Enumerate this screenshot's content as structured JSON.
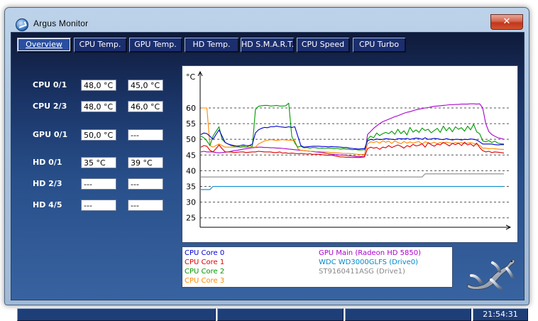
{
  "window": {
    "title": "Argus Monitor",
    "close_glyph": "✕",
    "icon_name": "argus-monitor-app-icon"
  },
  "tabs": [
    "Overview",
    "CPU Temp.",
    "GPU Temp.",
    "HD Temp.",
    "HD S.M.A.R.T.",
    "CPU Speed",
    "CPU Turbo"
  ],
  "active_tab": "Overview",
  "readings": [
    {
      "label": "CPU 0/1",
      "values": [
        "48,0 °C",
        "45,0 °C"
      ]
    },
    {
      "label": "CPU 2/3",
      "values": [
        "48,0 °C",
        "46,0 °C"
      ]
    },
    {
      "label": "GPU 0/1",
      "values": [
        "50,0 °C",
        "---"
      ]
    },
    {
      "label": "HD 0/1",
      "values": [
        "35 °C",
        "39 °C"
      ]
    },
    {
      "label": "HD 2/3",
      "values": [
        "---",
        "---"
      ]
    },
    {
      "label": "HD 4/5",
      "values": [
        "---",
        "---"
      ]
    }
  ],
  "legend": [
    {
      "label": "CPU Core 0",
      "color": "#0000cc"
    },
    {
      "label": "CPU Core 1",
      "color": "#dd0000"
    },
    {
      "label": "CPU Core 2",
      "color": "#009900"
    },
    {
      "label": "CPU Core 3",
      "color": "#ff8800"
    },
    {
      "label": "GPU Main (Radeon HD 5850)",
      "color": "#aa00cc"
    },
    {
      "label": "WDC WD3000GLFS (Drive0)",
      "color": "#0088cc"
    },
    {
      "label": "ST9160411ASG (Drive1)",
      "color": "#888888"
    }
  ],
  "status": {
    "time": "21:54:31"
  },
  "chart_data": {
    "type": "line",
    "ylabel": "°C",
    "yticks": [
      60,
      55,
      50,
      45,
      40,
      35,
      30,
      25
    ],
    "ylim": [
      22,
      67
    ],
    "x_count": 101,
    "grid": true,
    "series": [
      {
        "name": "CPU Core 0",
        "color": "#0000cc",
        "values": [
          51.5,
          52,
          51.8,
          51,
          50,
          51.5,
          53,
          51,
          49,
          48.5,
          48.2,
          48,
          47.8,
          48,
          48.2,
          48,
          48,
          48.5,
          52,
          53,
          53.5,
          53.8,
          53.7,
          54,
          54,
          54.2,
          54,
          53.9,
          53.8,
          54,
          53.8,
          54,
          51,
          48,
          47.5,
          47.6,
          47.7,
          47.8,
          47.8,
          47.8,
          47.7,
          47.7,
          47.6,
          47.7,
          47.6,
          47.6,
          47.5,
          47.4,
          47.4,
          47.2,
          47.1,
          47,
          46.9,
          47,
          47,
          49.5,
          50,
          49.8,
          50.1,
          49.9,
          50,
          50.2,
          50.1,
          50,
          49.9,
          50.2,
          50.2,
          50.1,
          50.3,
          50,
          50.2,
          50.4,
          50.3,
          50,
          50.5,
          50,
          50.1,
          50.3,
          50.2,
          50,
          49.9,
          50.2,
          50,
          49.8,
          50,
          50,
          49.8,
          50,
          49.9,
          50.1,
          50,
          49.8,
          49.2,
          48.5,
          48.5,
          48.5,
          48.5,
          48.3,
          48.2,
          48.3,
          48.3
        ]
      },
      {
        "name": "CPU Core 1",
        "color": "#dd0000",
        "values": [
          47.5,
          48,
          47.8,
          46.5,
          46,
          47,
          48.2,
          47,
          46,
          46,
          46,
          45.8,
          45.9,
          46,
          46,
          45.8,
          45.9,
          46,
          46,
          46.2,
          46.1,
          46,
          46,
          46,
          45.8,
          45.8,
          46,
          45.6,
          45.7,
          45.5,
          45.6,
          45.5,
          45.4,
          45.5,
          45.4,
          45.3,
          45.4,
          45.2,
          45.3,
          45.2,
          45.1,
          45,
          44.9,
          45,
          44.8,
          44.6,
          44.4,
          44.4,
          44.3,
          44.3,
          44.2,
          44.3,
          44.2,
          44.3,
          44.4,
          47,
          47.5,
          47.2,
          47.4,
          46.8,
          47.5,
          47.3,
          48,
          47.4,
          47.8,
          48.2,
          47.8,
          47.2,
          48,
          47.6,
          48.4,
          47.9,
          48.1,
          48.6,
          47.5,
          48.9,
          48.3,
          47.8,
          48.5,
          48.2,
          49,
          48.5,
          47.9,
          48.7,
          48.3,
          48.8,
          48,
          49.1,
          48.2,
          48.6,
          47.8,
          48.8,
          47.4,
          46.4,
          46,
          46.2,
          45.8,
          46,
          45.9,
          45.8,
          45.6
        ]
      },
      {
        "name": "CPU Core 2",
        "color": "#009900",
        "values": [
          51,
          50.5,
          49.5,
          48,
          51,
          52.5,
          54,
          50,
          49,
          48.5,
          48,
          47.8,
          47.9,
          47.5,
          47.8,
          47.5,
          48,
          47.8,
          59.5,
          60.5,
          60.7,
          60.8,
          60.8,
          60.6,
          60.7,
          60.8,
          60.6,
          60.6,
          60.7,
          61.5,
          51,
          48.8,
          47.5,
          47.8,
          47.3,
          47.4,
          47.2,
          47.4,
          47.3,
          47.1,
          47.2,
          47.1,
          47.2,
          47.2,
          47,
          47.1,
          46.9,
          47,
          46.9,
          46.8,
          46.7,
          46.8,
          46.6,
          46.6,
          46.7,
          50,
          51,
          50.5,
          52,
          51.2,
          51.8,
          52.2,
          51.8,
          52.6,
          51.6,
          53.2,
          51.8,
          52.7,
          51.4,
          53.8,
          52.3,
          53,
          52.2,
          53.6,
          52.8,
          53.2,
          52.1,
          52.8,
          53.5,
          52.2,
          54.2,
          52.7,
          53.8,
          52.4,
          54,
          53.2,
          53.7,
          52.6,
          54.2,
          53,
          54.8,
          52.4,
          51.8,
          49.5,
          49.2,
          49.6,
          49,
          49.4,
          48.8,
          48.6,
          48.5
        ]
      },
      {
        "name": "CPU Core 3",
        "color": "#ff8800",
        "values": [
          60,
          60,
          60,
          48,
          47.5,
          48,
          48.5,
          48,
          47.5,
          47.5,
          47.5,
          47.5,
          47.5,
          47.5,
          47.5,
          47.5,
          47.5,
          47.5,
          47.5,
          48.5,
          49,
          49.5,
          49.7,
          49.9,
          49.8,
          49.6,
          49.8,
          49.9,
          49.8,
          49.7,
          49.7,
          49.6,
          47,
          46.5,
          46.4,
          46.3,
          46.2,
          46.2,
          46.1,
          46.1,
          46,
          46,
          45.9,
          45.8,
          45.8,
          45.7,
          45.6,
          45.5,
          45.5,
          45.5,
          45.4,
          45.3,
          45.2,
          45.2,
          45.2,
          48.5,
          49.2,
          49,
          49.3,
          48.8,
          49.5,
          49.1,
          49.4,
          48.7,
          49.5,
          49,
          48.6,
          49.3,
          48.8,
          49.2,
          48.8,
          49.1,
          49.3,
          48.5,
          49.2,
          48.9,
          48.7,
          49.1,
          48.6,
          49,
          48.8,
          49.1,
          48.9,
          48.7,
          49,
          48.8,
          49,
          48.6,
          48.8,
          49,
          48.7,
          48.4,
          48.1,
          47.2,
          47.2,
          47,
          47.1,
          47,
          46.9,
          46.8,
          46.8
        ]
      },
      {
        "name": "GPU Main (Radeon HD 5850)",
        "color": "#aa00cc",
        "values": [
          46,
          46.2,
          46,
          46,
          46,
          45.8,
          45.7,
          45.8,
          45.9,
          46,
          46.2,
          46.4,
          46.5,
          46.7,
          46.9,
          47,
          47.2,
          47.3,
          47.4,
          47.5,
          47.5,
          47.4,
          47.4,
          47.3,
          47.3,
          47.2,
          47.2,
          47.1,
          47,
          46.9,
          46.8,
          46.7,
          46.6,
          46.5,
          46.4,
          46.3,
          46.2,
          46.1,
          46,
          45.9,
          45.8,
          45.6,
          45.4,
          45.3,
          45.2,
          45.1,
          45,
          45,
          44.9,
          44.8,
          44.7,
          44.6,
          44.5,
          44.5,
          44.5,
          51.5,
          52.5,
          53.5,
          54.3,
          55,
          55.6,
          56,
          56.4,
          56.8,
          57.2,
          57.5,
          57.9,
          58.3,
          58.6,
          58.8,
          59.1,
          59.4,
          59.6,
          59.8,
          60,
          60.1,
          60.3,
          60.5,
          60.6,
          60.7,
          60.8,
          60.9,
          61,
          61,
          61.1,
          61.1,
          61.2,
          61.2,
          61.2,
          61.3,
          61.3,
          61.2,
          61.3,
          60,
          55,
          52.5,
          51.5,
          51,
          50.5,
          50.3,
          50
        ]
      },
      {
        "name": "WDC WD3000GLFS (Drive0)",
        "color": "#0088cc",
        "values": [
          34,
          34,
          34,
          34,
          35,
          35,
          35,
          35,
          35,
          35,
          35,
          35,
          35,
          35,
          35,
          35,
          35,
          35,
          35,
          35,
          35,
          35,
          35,
          35,
          35,
          35,
          35,
          35,
          35,
          35,
          35,
          35,
          35,
          35,
          35,
          35,
          35,
          35,
          35,
          35,
          35,
          35,
          35,
          35,
          35,
          35,
          35,
          35,
          35,
          35,
          35,
          35,
          35,
          35,
          35,
          35,
          35,
          35,
          35,
          35,
          35,
          35,
          35,
          35,
          35,
          35,
          35,
          35,
          35,
          35,
          35,
          35,
          35,
          35,
          35,
          35,
          35,
          35,
          35,
          35,
          35,
          35,
          35,
          35,
          35,
          35,
          35,
          35,
          35,
          35,
          35,
          35,
          35,
          35,
          35,
          35,
          35,
          35,
          35,
          35,
          35
        ]
      },
      {
        "name": "ST9160411ASG (Drive1)",
        "color": "#888888",
        "values": [
          38,
          38,
          38,
          38,
          38,
          38,
          38,
          38,
          38,
          38,
          38,
          38,
          38,
          38,
          38,
          38,
          38,
          38,
          38,
          38,
          38,
          38,
          38,
          38,
          38,
          38,
          38,
          38,
          38,
          38,
          38,
          38,
          38,
          38,
          38,
          38,
          38,
          38,
          38,
          38,
          38,
          38,
          38,
          38,
          38,
          38,
          38,
          38,
          38,
          38,
          38,
          38,
          38,
          38,
          38,
          38,
          38,
          38,
          38,
          38,
          38,
          38,
          38,
          38,
          38,
          38,
          38,
          38,
          38,
          38,
          38,
          38,
          38,
          38,
          39,
          39,
          39,
          39,
          39,
          39,
          39,
          39,
          39,
          39,
          39,
          39,
          39,
          39,
          39,
          39,
          39,
          39,
          39,
          39,
          39,
          39,
          39,
          39,
          39,
          39,
          39
        ]
      }
    ]
  }
}
